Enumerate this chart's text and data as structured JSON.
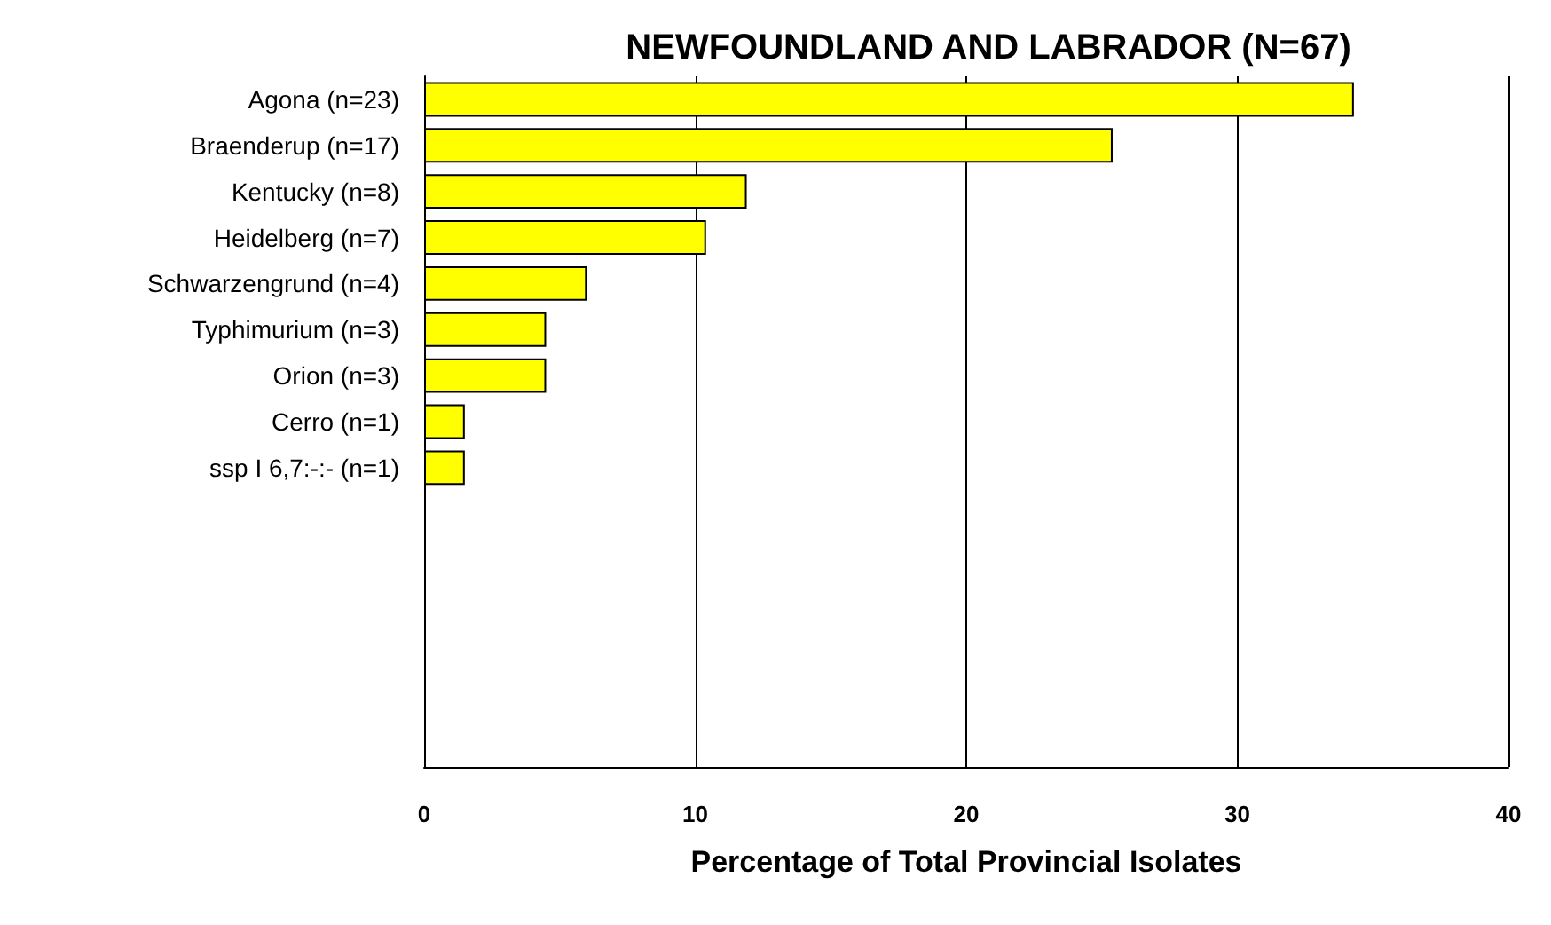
{
  "chart_data": {
    "type": "bar",
    "orientation": "horizontal",
    "title": "NEWFOUNDLAND AND LABRADOR (N=67)",
    "xlabel": "Percentage of Total Provincial Isolates",
    "categories": [
      "Agona (n=23)",
      "Braenderup (n=17)",
      "Kentucky (n=8)",
      "Heidelberg (n=7)",
      "Schwarzengrund (n=4)",
      "Typhimurium (n=3)",
      "Orion (n=3)",
      "Cerro (n=1)",
      "ssp I 6,7:-:- (n=1)",
      null,
      null,
      null,
      null,
      null,
      null
    ],
    "values": [
      34.3,
      25.4,
      11.9,
      10.4,
      6.0,
      4.5,
      4.5,
      1.5,
      1.5,
      null,
      null,
      null,
      null,
      null,
      null
    ],
    "color": "#ffff00",
    "xlim": [
      0,
      40
    ],
    "xticks": [
      0,
      10,
      20,
      30,
      40
    ],
    "grid": "x"
  }
}
